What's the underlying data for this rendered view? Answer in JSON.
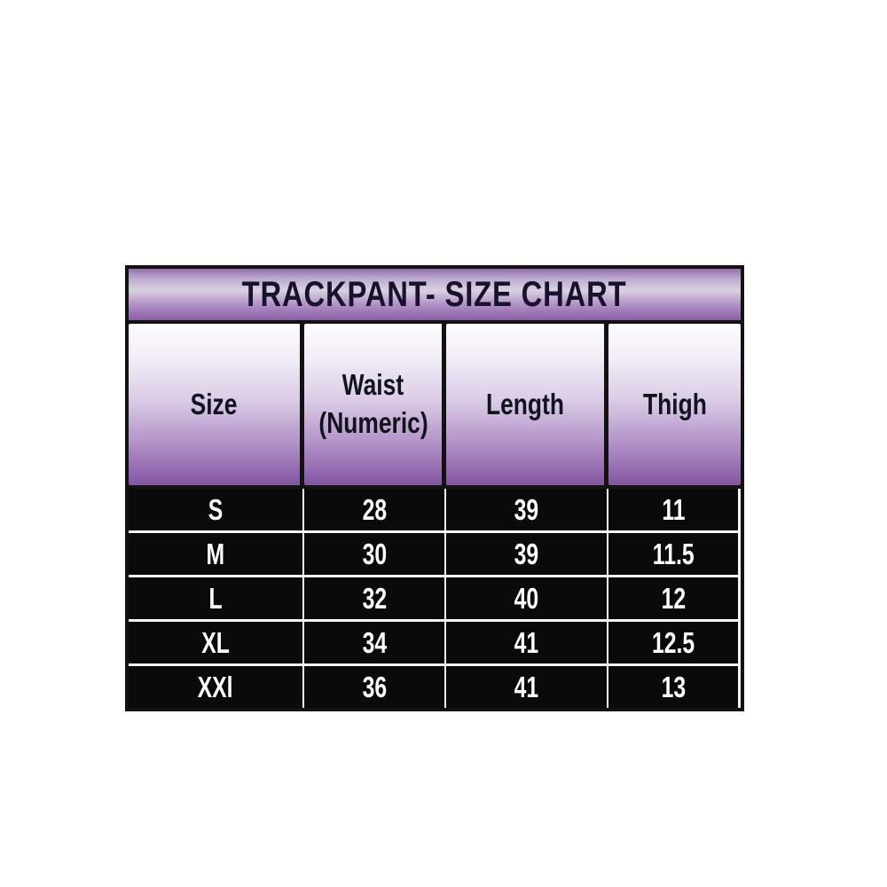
{
  "size_chart": {
    "title": "TRACKPANT- SIZE CHART",
    "columns": [
      {
        "line1": "Size",
        "line2": ""
      },
      {
        "line1": "Waist",
        "line2": "(Numeric)"
      },
      {
        "line1": "Length",
        "line2": ""
      },
      {
        "line1": "Thigh",
        "line2": ""
      }
    ],
    "rows": [
      {
        "cells": [
          "S",
          "28",
          "39",
          "11"
        ]
      },
      {
        "cells": [
          "M",
          "30",
          "39",
          "11.5"
        ]
      },
      {
        "cells": [
          "L",
          "32",
          "40",
          "12"
        ]
      },
      {
        "cells": [
          "XL",
          "34",
          "41",
          "12.5"
        ]
      },
      {
        "cells": [
          "XXl",
          "36",
          "41",
          "13"
        ]
      }
    ],
    "colors": {
      "title_text": "#18122f",
      "header_text": "#131320",
      "data_text": "#ffffff",
      "purple_dark": "#8a5ba6",
      "purple_light": "#d9d2de",
      "header_gradient_top": "#fdfcfe",
      "row_background": "#0a0a0a",
      "border": "#121212",
      "separator": "#f4f4f4",
      "page_background": "#ffffff"
    }
  },
  "chart_data": {
    "type": "table",
    "title": "TRACKPANT- SIZE CHART",
    "columns": [
      "Size",
      "Waist (Numeric)",
      "Length",
      "Thigh"
    ],
    "rows": [
      [
        "S",
        28,
        39,
        11
      ],
      [
        "M",
        30,
        39,
        11.5
      ],
      [
        "L",
        32,
        40,
        12
      ],
      [
        "XL",
        34,
        41,
        12.5
      ],
      [
        "XXl",
        36,
        41,
        13
      ]
    ],
    "layout": {
      "title_bar_style": "purple gloss gradient",
      "header_style": "white-to-purple vertical gradient cells",
      "body_style": "black rows, white bold text, white grid separators"
    }
  }
}
